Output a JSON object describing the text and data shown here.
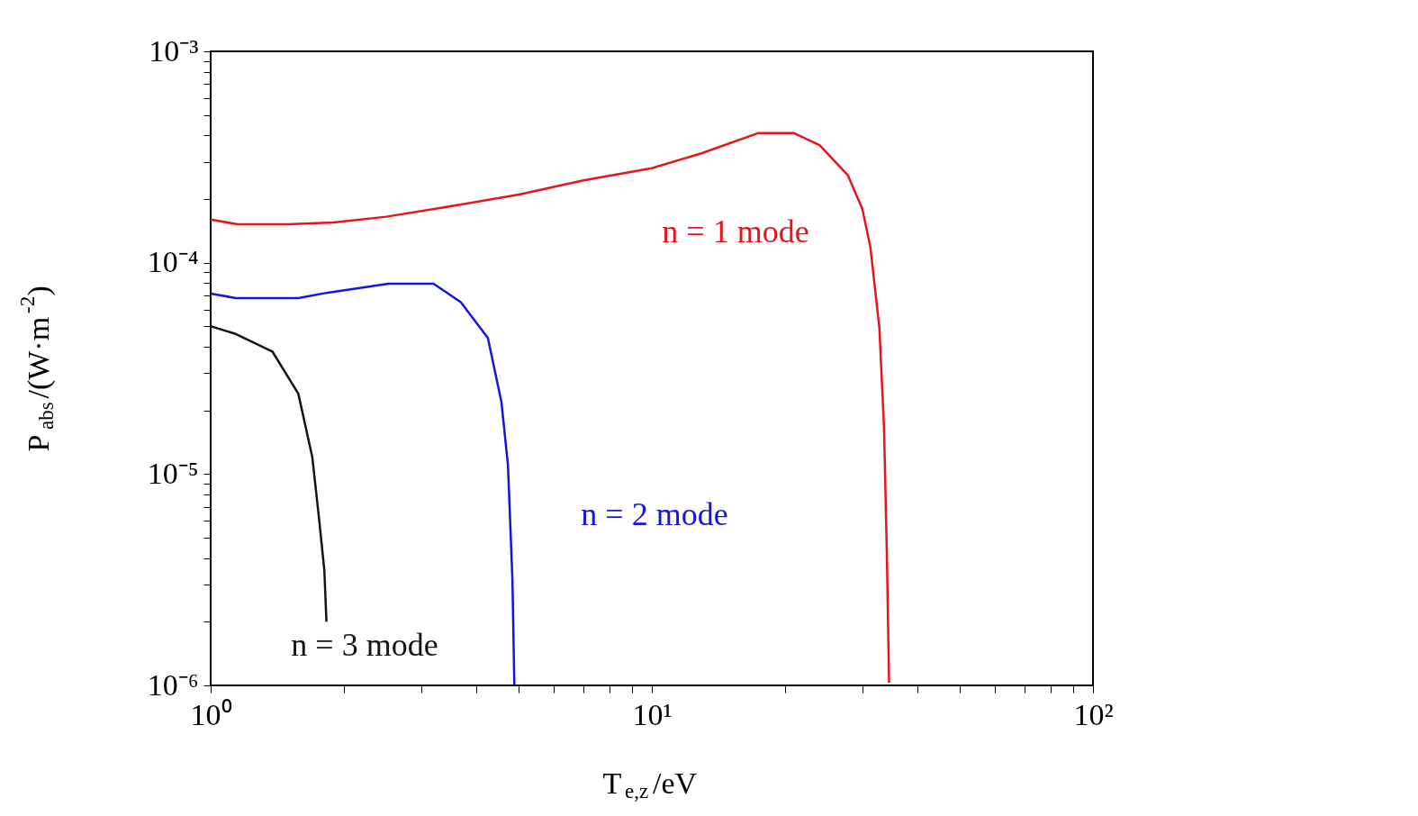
{
  "chart_data": {
    "type": "line",
    "xlabel": "T$_{e,z}$/eV",
    "ylabel": "P$_{abs}$/(W·m$^{-2}$)",
    "log": "xy",
    "grid": false,
    "marker": "none",
    "line_style": "solid",
    "xlim": [
      1,
      100
    ],
    "ylim": [
      1e-06,
      0.001
    ],
    "xticks": [
      {
        "value": 1,
        "label": "10⁰"
      },
      {
        "value": 2,
        "label": null
      },
      {
        "value": 3,
        "label": null
      },
      {
        "value": 4,
        "label": null
      },
      {
        "value": 5,
        "label": null
      },
      {
        "value": 6,
        "label": null
      },
      {
        "value": 7,
        "label": null
      },
      {
        "value": 8,
        "label": null
      },
      {
        "value": 9,
        "label": null
      },
      {
        "value": 10,
        "label": "10¹"
      },
      {
        "value": 20,
        "label": null
      },
      {
        "value": 30,
        "label": null
      },
      {
        "value": 40,
        "label": null
      },
      {
        "value": 50,
        "label": null
      },
      {
        "value": 60,
        "label": null
      },
      {
        "value": 70,
        "label": null
      },
      {
        "value": 80,
        "label": null
      },
      {
        "value": 90,
        "label": null
      },
      {
        "value": 100,
        "label": "10²"
      }
    ],
    "yticks": [
      {
        "value": 1e-06,
        "label": "10⁻⁶"
      },
      {
        "value": 2e-06,
        "label": null
      },
      {
        "value": 3e-06,
        "label": null
      },
      {
        "value": 4e-06,
        "label": null
      },
      {
        "value": 5e-06,
        "label": null
      },
      {
        "value": 6e-06,
        "label": null
      },
      {
        "value": 7e-06,
        "label": null
      },
      {
        "value": 8e-06,
        "label": null
      },
      {
        "value": 9e-06,
        "label": null
      },
      {
        "value": 1e-05,
        "label": "10⁻⁵"
      },
      {
        "value": 2e-05,
        "label": null
      },
      {
        "value": 3e-05,
        "label": null
      },
      {
        "value": 4e-05,
        "label": null
      },
      {
        "value": 5e-05,
        "label": null
      },
      {
        "value": 6e-05,
        "label": null
      },
      {
        "value": 7e-05,
        "label": null
      },
      {
        "value": 8e-05,
        "label": null
      },
      {
        "value": 9e-05,
        "label": null
      },
      {
        "value": 0.0001,
        "label": "10⁻⁴"
      },
      {
        "value": 0.0002,
        "label": null
      },
      {
        "value": 0.0003,
        "label": null
      },
      {
        "value": 0.0004,
        "label": null
      },
      {
        "value": 0.0005,
        "label": null
      },
      {
        "value": 0.0006,
        "label": null
      },
      {
        "value": 0.0007,
        "label": null
      },
      {
        "value": 0.0008,
        "label": null
      },
      {
        "value": 0.0009,
        "label": null
      },
      {
        "value": 0.001,
        "label": "10⁻³"
      }
    ],
    "series": [
      {
        "color": "#e8141c",
        "x": [
          1,
          1.15,
          1.5,
          1.9,
          2.5,
          3.5,
          5,
          7,
          10,
          13,
          17.4,
          21,
          24,
          27.8,
          30,
          31.3,
          32.8,
          33.6,
          34.1,
          34.5
        ],
        "values": [
          0.00016,
          0.000152,
          0.000152,
          0.000155,
          0.000165,
          0.000185,
          0.00021,
          0.000245,
          0.00028,
          0.00033,
          0.00041,
          0.00041,
          0.00036,
          0.00026,
          0.00018,
          0.000118,
          4.9e-05,
          1.66e-05,
          4.2e-06,
          1.03e-06
        ]
      },
      {
        "color": "#1414dc",
        "x": [
          1,
          1.14,
          1.58,
          1.83,
          2.53,
          3.2,
          3.69,
          4.25,
          4.56,
          4.72,
          4.83,
          4.88
        ],
        "values": [
          7.15e-05,
          6.8e-05,
          6.8e-05,
          7.2e-05,
          7.95e-05,
          7.95e-05,
          6.5e-05,
          4.4e-05,
          2.2e-05,
          1.1e-05,
          3.2e-06,
          1e-06
        ]
      },
      {
        "color": "#141414",
        "x": [
          1,
          1.14,
          1.38,
          1.58,
          1.7,
          1.76,
          1.81,
          1.83
        ],
        "values": [
          5e-05,
          4.6e-05,
          3.8e-05,
          2.4e-05,
          1.2e-05,
          6.2e-06,
          3.5e-06,
          2e-06
        ]
      }
    ],
    "annotations": [
      "n = 1 mode",
      "n = 2 mode",
      "n = 3 mode"
    ]
  }
}
